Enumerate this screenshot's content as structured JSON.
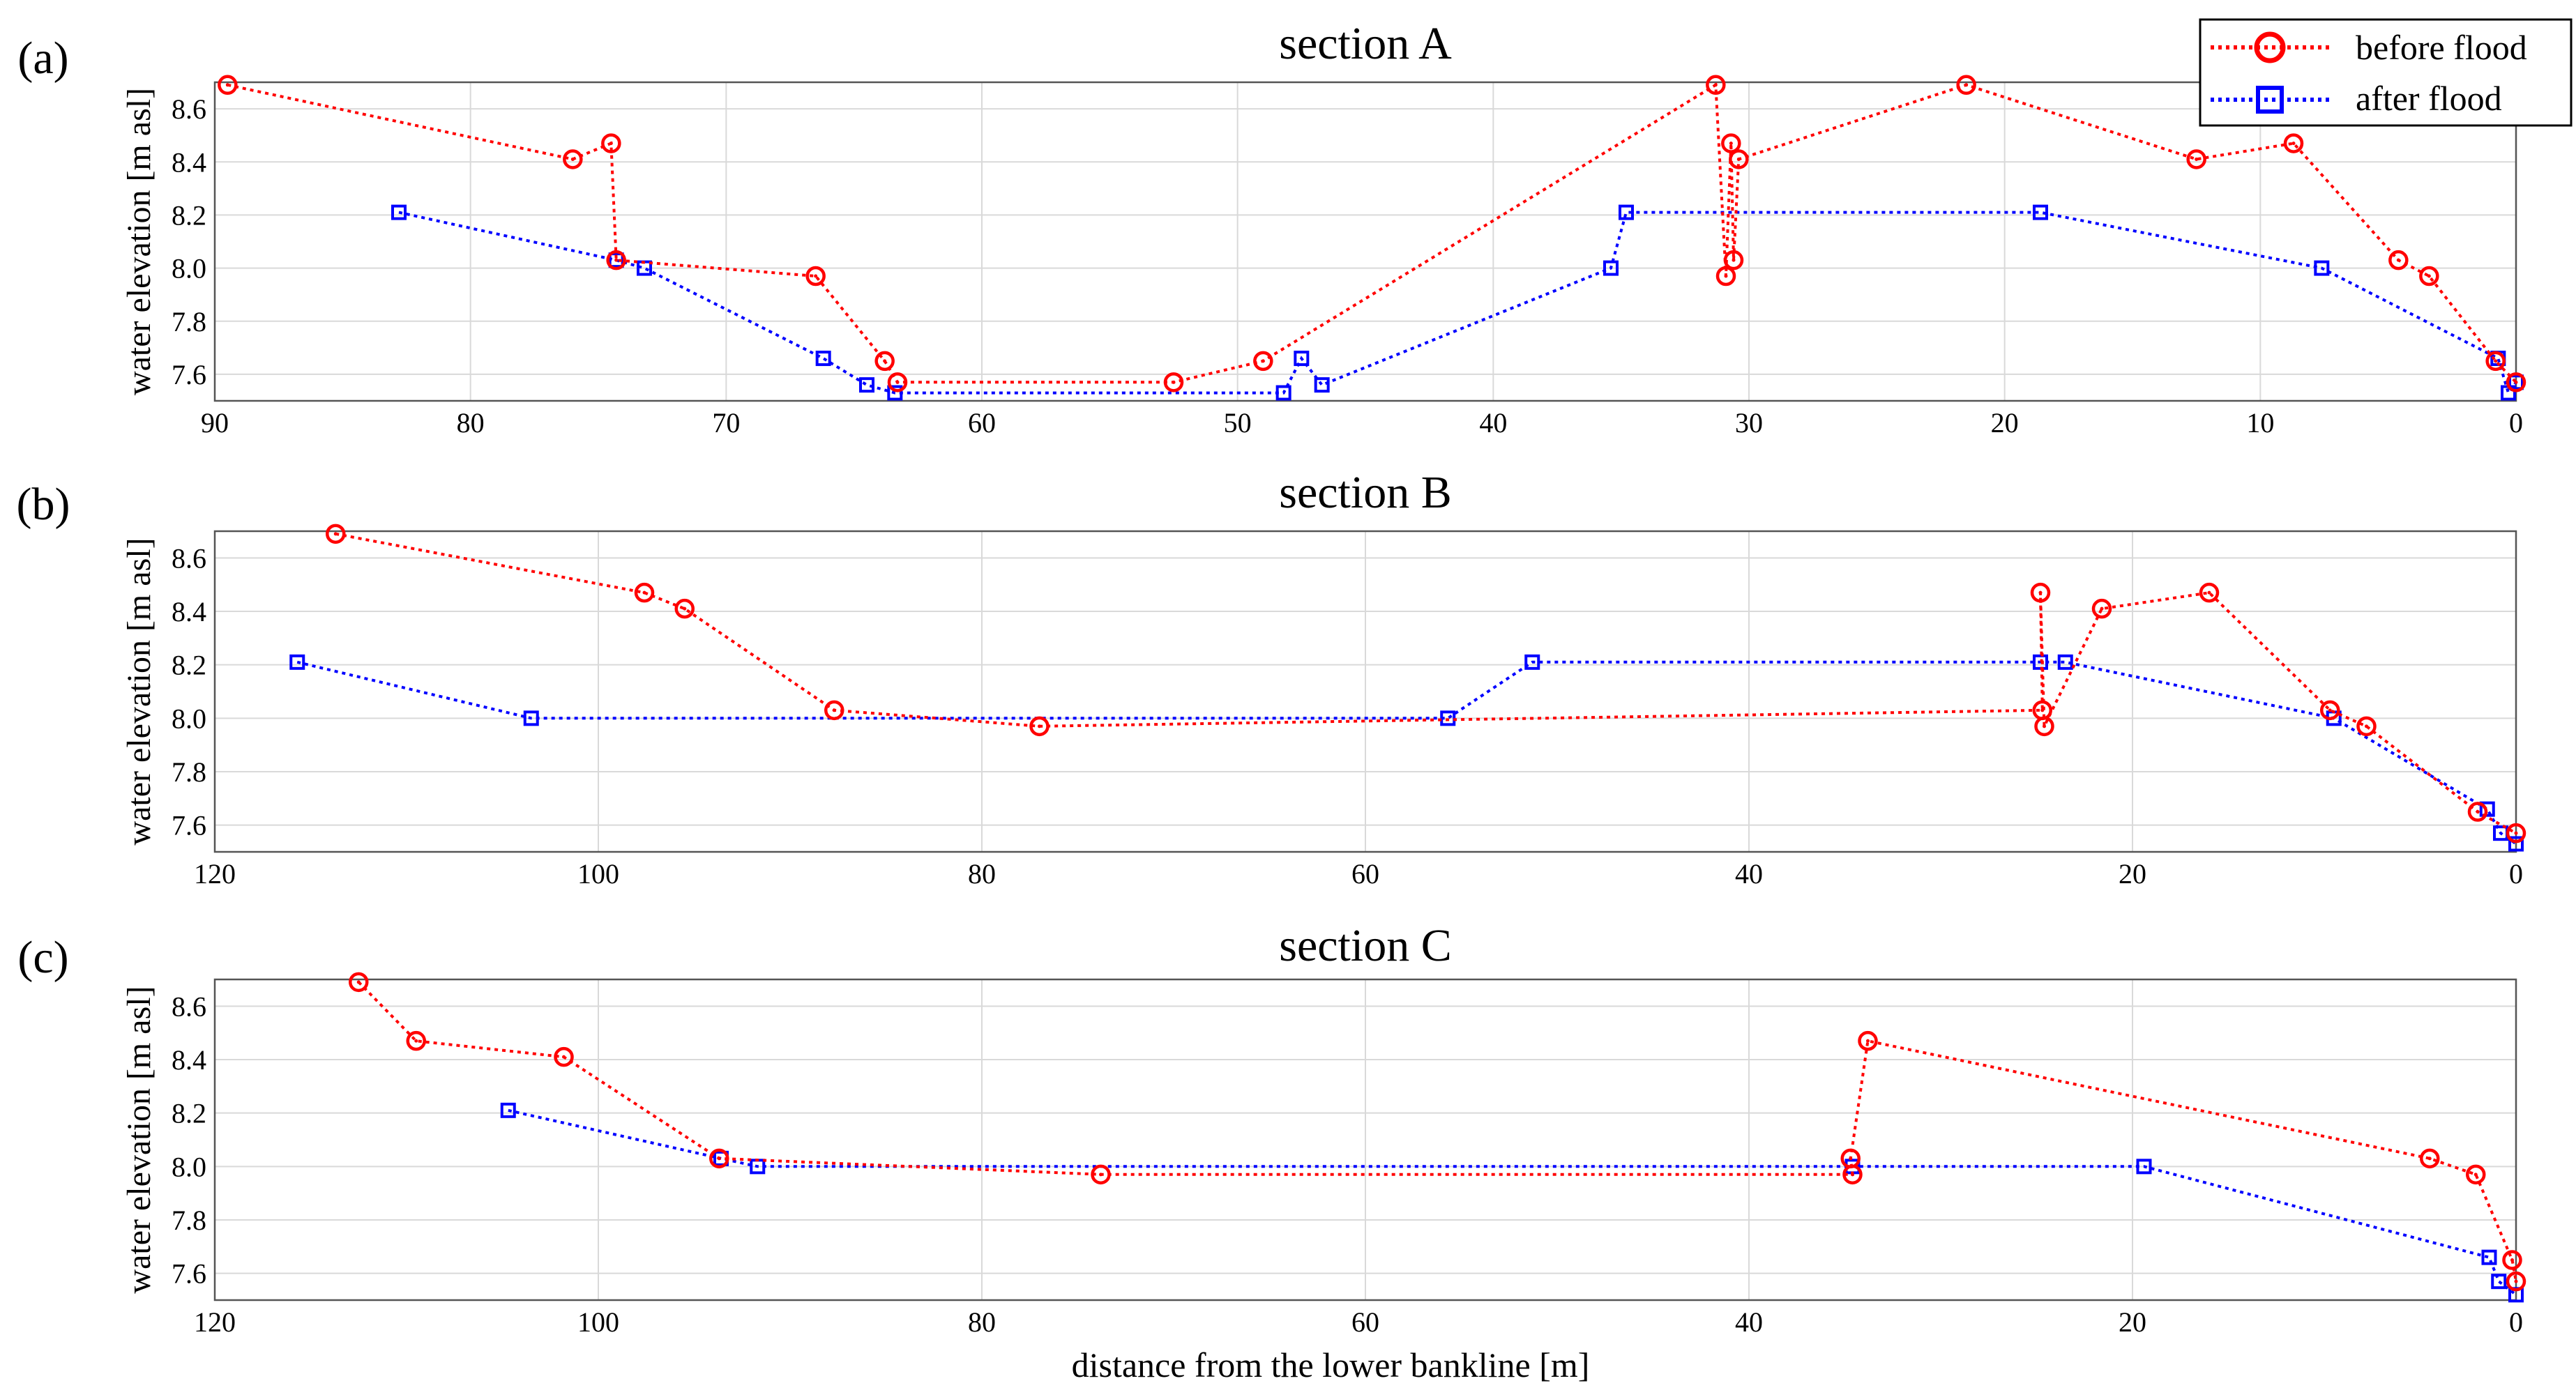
{
  "colors": {
    "before": "#ff0000",
    "after": "#0000ff",
    "grid": "#d9d9d9",
    "frame": "#555555"
  },
  "legend": {
    "before_label": "before flood",
    "after_label": "after flood"
  },
  "xlabel": "distance from the lower bankline [m]",
  "chart_data": [
    {
      "type": "line",
      "panel": "(a)",
      "title": "section A",
      "xlabel": "",
      "ylabel": "water elevation [m asl]",
      "xlim": [
        90,
        0
      ],
      "ylim": [
        7.5,
        8.7
      ],
      "xticks": [
        90,
        80,
        70,
        60,
        50,
        40,
        30,
        20,
        10,
        0
      ],
      "yticks": [
        7.6,
        7.8,
        8.0,
        8.2,
        8.4,
        8.6
      ],
      "series": [
        {
          "name": "before flood",
          "x": [
            89.5,
            76.0,
            74.5,
            74.3,
            66.5,
            63.8,
            63.3,
            52.5,
            49.0,
            31.3,
            30.9,
            30.7,
            30.6,
            30.4,
            21.5,
            12.5,
            8.7,
            4.6,
            3.4,
            0.8,
            0.0
          ],
          "y": [
            8.69,
            8.41,
            8.47,
            8.03,
            7.97,
            7.65,
            7.57,
            7.57,
            7.65,
            8.69,
            7.97,
            8.47,
            8.03,
            8.41,
            8.69,
            8.41,
            8.47,
            8.03,
            7.97,
            7.65,
            7.57
          ]
        },
        {
          "name": "after flood",
          "x": [
            82.8,
            74.3,
            73.2,
            66.2,
            64.5,
            63.4,
            48.2,
            47.5,
            46.7,
            35.4,
            34.8,
            18.6,
            7.6,
            0.7,
            0.3,
            0.0
          ],
          "y": [
            8.21,
            8.03,
            8.0,
            7.66,
            7.56,
            7.53,
            7.53,
            7.66,
            7.56,
            8.0,
            8.21,
            8.21,
            8.0,
            7.66,
            7.53,
            7.57
          ]
        }
      ]
    },
    {
      "type": "line",
      "panel": "(b)",
      "title": "section B",
      "xlabel": "",
      "ylabel": "water elevation [m asl]",
      "xlim": [
        120,
        0
      ],
      "ylim": [
        7.5,
        8.7
      ],
      "xticks": [
        120,
        100,
        80,
        60,
        40,
        20,
        0
      ],
      "yticks": [
        7.6,
        7.8,
        8.0,
        8.2,
        8.4,
        8.6
      ],
      "series": [
        {
          "name": "before flood",
          "x": [
            113.7,
            97.6,
            95.5,
            87.7,
            77.0,
            24.7,
            24.8,
            24.6,
            21.6,
            16.0,
            9.7,
            7.8,
            2.0,
            0.0
          ],
          "y": [
            8.69,
            8.47,
            8.41,
            8.03,
            7.97,
            8.03,
            8.47,
            7.97,
            8.41,
            8.47,
            8.03,
            7.97,
            7.65,
            7.57
          ]
        },
        {
          "name": "after flood",
          "x": [
            115.7,
            103.5,
            55.7,
            51.3,
            24.8,
            23.5,
            9.5,
            1.5,
            0.8,
            0.0
          ],
          "y": [
            8.21,
            8.0,
            8.0,
            8.21,
            8.21,
            8.21,
            8.0,
            7.66,
            7.57,
            7.53
          ]
        }
      ]
    },
    {
      "type": "line",
      "panel": "(c)",
      "title": "section C",
      "xlabel": "distance from the lower bankline [m]",
      "ylabel": "water elevation [m asl]",
      "xlim": [
        120,
        0
      ],
      "ylim": [
        7.5,
        8.7
      ],
      "xticks": [
        120,
        100,
        80,
        60,
        40,
        20,
        0
      ],
      "yticks": [
        7.6,
        7.8,
        8.0,
        8.2,
        8.4,
        8.6
      ],
      "series": [
        {
          "name": "before flood",
          "x": [
            112.5,
            109.5,
            101.8,
            93.7,
            73.8,
            34.6,
            34.7,
            33.8,
            4.5,
            2.1,
            0.2,
            0.0
          ],
          "y": [
            8.69,
            8.47,
            8.41,
            8.03,
            7.97,
            7.97,
            8.03,
            8.47,
            8.03,
            7.97,
            7.65,
            7.57
          ]
        },
        {
          "name": "after flood",
          "x": [
            104.7,
            93.6,
            91.7,
            34.6,
            19.4,
            1.4,
            0.9,
            0.0
          ],
          "y": [
            8.21,
            8.03,
            8.0,
            8.0,
            8.0,
            7.66,
            7.57,
            7.52
          ]
        }
      ]
    }
  ]
}
